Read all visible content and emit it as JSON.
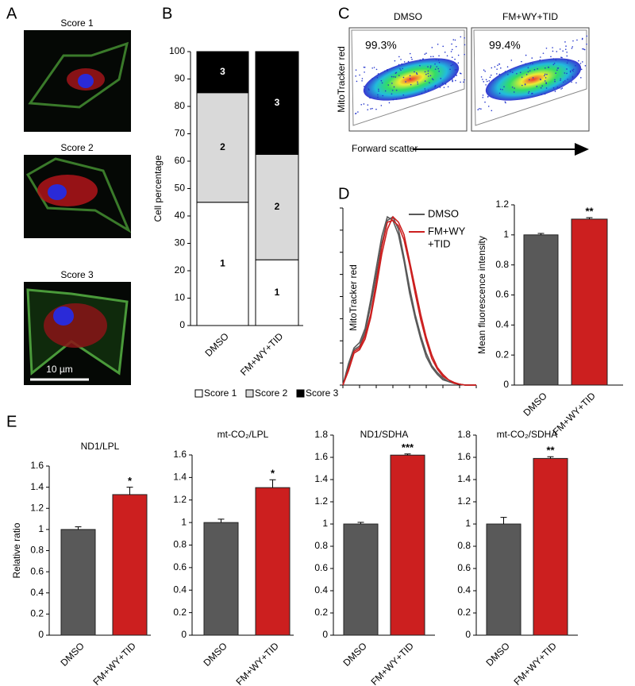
{
  "panel_labels": [
    "A",
    "B",
    "C",
    "D",
    "E"
  ],
  "panel_a": {
    "images": [
      {
        "title": "Score 1"
      },
      {
        "title": "Score 2"
      },
      {
        "title": "Score 3"
      }
    ],
    "scale_bar": "10 µm"
  },
  "panel_c": {
    "plots": [
      {
        "title": "DMSO",
        "gate": "99.3%"
      },
      {
        "title": "FM+WY+TID",
        "gate": "99.4%"
      }
    ],
    "ylabel": "MitoTracker red",
    "xlabel": "Forward scatter"
  },
  "chart_data": [
    {
      "type": "stacked_bar",
      "ylabel": "Cell percentage",
      "categories": [
        "DMSO",
        "FM+WY+TID"
      ],
      "series": [
        {
          "name": "Score 1",
          "label": "1",
          "color": "#ffffff",
          "values": [
            45,
            24
          ]
        },
        {
          "name": "Score 2",
          "label": "2",
          "color": "#d9d9d9",
          "values": [
            40,
            38.5
          ]
        },
        {
          "name": "Score 3",
          "label": "3",
          "color": "#000000",
          "values": [
            15,
            37.5
          ]
        }
      ],
      "ylim": [
        0,
        100
      ],
      "yticks": [
        0,
        10,
        20,
        30,
        40,
        50,
        60,
        70,
        80,
        90,
        100
      ],
      "legend": "bottom"
    },
    {
      "type": "line",
      "ylabel": "MitoTracker red",
      "x": [
        0,
        1,
        2,
        3,
        4,
        5,
        6,
        7,
        8,
        9,
        10,
        11,
        12,
        13,
        14,
        15,
        16,
        17,
        18,
        19,
        20,
        21,
        22,
        23,
        24
      ],
      "xlim": [
        0,
        24
      ],
      "ylim": [
        0,
        100
      ],
      "series": [
        {
          "name": [
            "DMSO"
          ],
          "color": "#595959",
          "values": [
            [
              0,
              10,
              20,
              22,
              30,
              45,
              62,
              80,
              93,
              95,
              88,
              72,
              55,
              40,
              28,
              18,
              11,
              7,
              4,
              2,
              1,
              0.5,
              0,
              0,
              0
            ],
            [
              0,
              12,
              21,
              24,
              32,
              48,
              66,
              84,
              95,
              93,
              85,
              70,
              52,
              38,
              26,
              16,
              10,
              6,
              3,
              2,
              1,
              0.5,
              0,
              0,
              0
            ]
          ]
        },
        {
          "name": [
            "FM+WY",
            "+TID"
          ],
          "color": "#cc1f1f",
          "values": [
            [
              0,
              8,
              18,
              20,
              26,
              38,
              55,
              74,
              88,
              95,
              92,
              85,
              70,
              55,
              40,
              27,
              17,
              10,
              6,
              3,
              1.5,
              0.5,
              0,
              0,
              0
            ],
            [
              0,
              9,
              19,
              21,
              28,
              40,
              58,
              78,
              92,
              93,
              90,
              82,
              68,
              52,
              37,
              25,
              15,
              9,
              5,
              3,
              1,
              0.5,
              0,
              0,
              0
            ]
          ]
        }
      ],
      "legend": "upper right"
    },
    {
      "type": "bar",
      "ylabel": "Mean fluorescence intensity",
      "categories": [
        "DMSO",
        "FM+WY+TID"
      ],
      "values": [
        1.0,
        1.105
      ],
      "errors": [
        0.01,
        0.01
      ],
      "colors": [
        "#595959",
        "#cc1f1f"
      ],
      "significance": "**",
      "ylim": [
        0,
        1.2
      ],
      "yticks": [
        0,
        0.2,
        0.4,
        0.6,
        0.8,
        1,
        1.2
      ]
    },
    {
      "type": "bar",
      "title": "ND1/LPL",
      "ylabel": "Relative ratio",
      "categories": [
        "DMSO",
        "FM+WY+TID"
      ],
      "values": [
        1.0,
        1.33
      ],
      "errors": [
        0.025,
        0.07
      ],
      "colors": [
        "#595959",
        "#cc1f1f"
      ],
      "significance": "*",
      "ylim": [
        0,
        1.6
      ],
      "yticks": [
        0,
        0.2,
        0.4,
        0.6,
        0.8,
        1,
        1.2,
        1.4,
        1.6
      ]
    },
    {
      "type": "bar",
      "title": "mt-CO₂/LPL",
      "categories": [
        "DMSO",
        "FM+WY+TID"
      ],
      "values": [
        1.0,
        1.31
      ],
      "errors": [
        0.03,
        0.07
      ],
      "colors": [
        "#595959",
        "#cc1f1f"
      ],
      "significance": "*",
      "ylim": [
        0,
        1.6
      ],
      "yticks": [
        0,
        0.2,
        0.4,
        0.6,
        0.8,
        1,
        1.2,
        1.4,
        1.6
      ]
    },
    {
      "type": "bar",
      "title": "ND1/SDHA",
      "categories": [
        "DMSO",
        "FM+WY+TID"
      ],
      "values": [
        1.0,
        1.62
      ],
      "errors": [
        0.015,
        0.01
      ],
      "colors": [
        "#595959",
        "#cc1f1f"
      ],
      "significance": "***",
      "ylim": [
        0,
        1.8
      ],
      "yticks": [
        0,
        0.2,
        0.4,
        0.6,
        0.8,
        1,
        1.2,
        1.4,
        1.6,
        1.8
      ]
    },
    {
      "type": "bar",
      "title": "mt-CO₂/SDHA",
      "categories": [
        "DMSO",
        "FM+WY+TID"
      ],
      "values": [
        1.0,
        1.59
      ],
      "errors": [
        0.06,
        0.015
      ],
      "colors": [
        "#595959",
        "#cc1f1f"
      ],
      "significance": "**",
      "ylim": [
        0,
        1.8
      ],
      "yticks": [
        0,
        0.2,
        0.4,
        0.6,
        0.8,
        1,
        1.2,
        1.4,
        1.6,
        1.8
      ]
    }
  ]
}
